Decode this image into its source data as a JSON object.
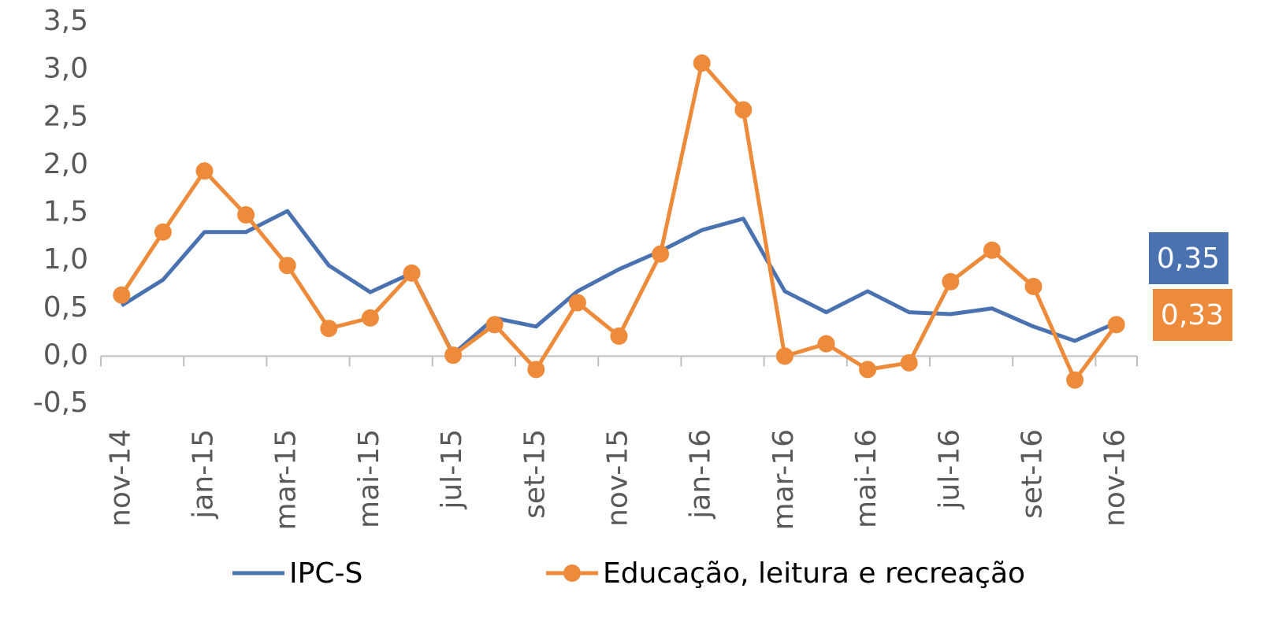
{
  "chart_data": {
    "type": "line",
    "categories": [
      "nov-14",
      null,
      "jan-15",
      null,
      "mar-15",
      null,
      "mai-15",
      null,
      "jul-15",
      null,
      "set-15",
      null,
      "nov-15",
      null,
      "jan-16",
      null,
      "mar-16",
      null,
      "mai-16",
      null,
      "jul-16",
      null,
      "set-16",
      null,
      "nov-16"
    ],
    "series": [
      {
        "name": "IPC-S",
        "color": "#4a72b0",
        "marker": false,
        "values": [
          0.53,
          0.8,
          1.3,
          1.3,
          1.52,
          0.95,
          0.67,
          0.87,
          0.02,
          0.4,
          0.31,
          0.68,
          0.91,
          1.1,
          1.32,
          1.44,
          0.68,
          0.46,
          0.68,
          0.46,
          0.44,
          0.5,
          0.31,
          0.16,
          0.35
        ],
        "value_labels": [
          null,
          null,
          null,
          null,
          null,
          null,
          null,
          null,
          null,
          null,
          null,
          null,
          null,
          null,
          null,
          null,
          null,
          null,
          null,
          null,
          null,
          null,
          null,
          null,
          "0,35"
        ]
      },
      {
        "name": "Educação, leitura e recreação",
        "color": "#ed8b3a",
        "marker": true,
        "values": [
          0.64,
          1.3,
          1.94,
          1.48,
          0.95,
          0.29,
          0.4,
          0.87,
          0.01,
          0.33,
          -0.14,
          0.56,
          0.21,
          1.07,
          3.07,
          2.58,
          0.0,
          0.13,
          -0.14,
          -0.07,
          0.78,
          1.11,
          0.73,
          -0.25,
          0.33
        ],
        "value_labels": [
          null,
          null,
          null,
          null,
          null,
          null,
          null,
          null,
          null,
          null,
          null,
          null,
          null,
          null,
          null,
          null,
          null,
          null,
          null,
          null,
          null,
          null,
          null,
          null,
          "0,33"
        ]
      }
    ],
    "ylim": [
      -0.5,
      3.5
    ],
    "yticks": [
      {
        "value": -0.5,
        "label": "-0,5"
      },
      {
        "value": 0,
        "label": "0,0"
      },
      {
        "value": 0.5,
        "label": "0,5"
      },
      {
        "value": 1,
        "label": "1,0"
      },
      {
        "value": 1.5,
        "label": "1,5"
      },
      {
        "value": 2,
        "label": "2,0"
      },
      {
        "value": 2.5,
        "label": "2,5"
      },
      {
        "value": 3,
        "label": "3,0"
      },
      {
        "value": 3.5,
        "label": "3,5"
      }
    ],
    "grid": false
  }
}
